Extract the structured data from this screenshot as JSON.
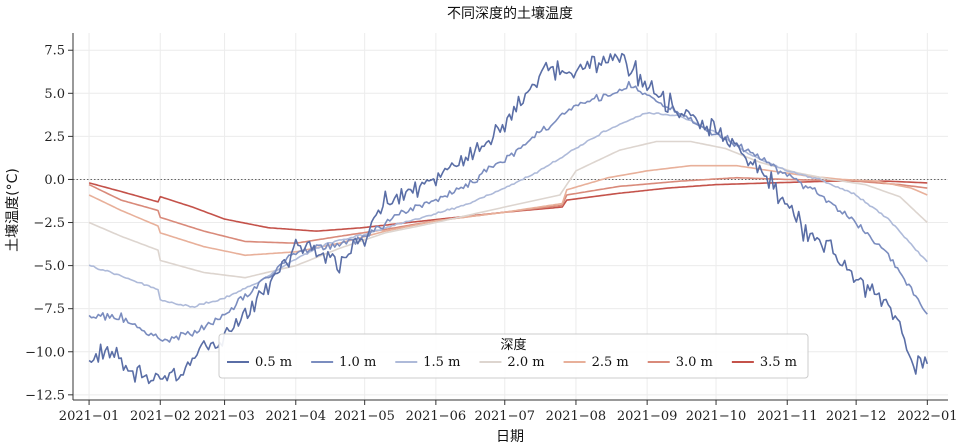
{
  "chart_data": {
    "type": "line",
    "title": "不同深度的土壤温度",
    "xlabel": "日期",
    "ylabel": "土壤温度(°C)",
    "xlim": [
      "2020-12-25",
      "2022-01-10"
    ],
    "ylim": [
      -12.8,
      8.5
    ],
    "x_ticks": [
      "2021-01-01",
      "2021-02-01",
      "2021-03-01",
      "2021-04-01",
      "2021-05-01",
      "2021-06-01",
      "2021-07-01",
      "2021-08-01",
      "2021-09-01",
      "2021-10-01",
      "2021-11-01",
      "2021-12-01",
      "2022-01-01"
    ],
    "x_tick_labels": [
      "2021−01",
      "2021−02",
      "2021−03",
      "2021−04",
      "2021−05",
      "2021−06",
      "2021−07",
      "2021−08",
      "2021−09",
      "2021−10",
      "2021−11",
      "2021−12",
      "2022−01"
    ],
    "y_ticks": [
      7.5,
      5.0,
      2.5,
      0.0,
      -2.5,
      -5.0,
      -7.5,
      -10.0,
      -12.5
    ],
    "y_tick_labels": [
      "7.5",
      "5.0",
      "2.5",
      "0.0",
      "−2.5",
      "−5.0",
      "−7.5",
      "−10.0",
      "−12.5"
    ],
    "grid": true,
    "reference_line": 0,
    "legend": {
      "title": "深度",
      "placement": "lower-center",
      "columns": 7
    },
    "series": [
      {
        "name": "0.5 m",
        "color": "#5a6ea6",
        "noise": 0.55,
        "points": [
          [
            "2021-01-01",
            -10.8
          ],
          [
            "2021-01-10",
            -9.8
          ],
          [
            "2021-01-20",
            -11.2
          ],
          [
            "2021-02-01",
            -11.6
          ],
          [
            "2021-02-10",
            -11.4
          ],
          [
            "2021-02-20",
            -9.6
          ],
          [
            "2021-03-01",
            -9.2
          ],
          [
            "2021-03-10",
            -7.8
          ],
          [
            "2021-03-20",
            -6.4
          ],
          [
            "2021-04-01",
            -3.8
          ],
          [
            "2021-04-10",
            -3.9
          ],
          [
            "2021-04-20",
            -4.8
          ],
          [
            "2021-05-01",
            -3.2
          ],
          [
            "2021-05-10",
            -1.2
          ],
          [
            "2021-05-20",
            -0.9
          ],
          [
            "2021-06-01",
            0.2
          ],
          [
            "2021-06-15",
            1.2
          ],
          [
            "2021-07-01",
            3.2
          ],
          [
            "2021-07-10",
            4.8
          ],
          [
            "2021-07-20",
            6.5
          ],
          [
            "2021-08-01",
            6.2
          ],
          [
            "2021-08-10",
            6.5
          ],
          [
            "2021-08-20",
            7.2
          ],
          [
            "2021-09-01",
            5.4
          ],
          [
            "2021-09-10",
            4.4
          ],
          [
            "2021-09-20",
            3.5
          ],
          [
            "2021-10-01",
            2.9
          ],
          [
            "2021-10-10",
            2.0
          ],
          [
            "2021-10-20",
            0.5
          ],
          [
            "2021-11-01",
            -1.5
          ],
          [
            "2021-11-10",
            -3.0
          ],
          [
            "2021-11-20",
            -4.0
          ],
          [
            "2021-12-01",
            -6.0
          ],
          [
            "2021-12-10",
            -6.8
          ],
          [
            "2021-12-20",
            -8.4
          ],
          [
            "2021-12-26",
            -11.0
          ],
          [
            "2022-01-01",
            -10.8
          ]
        ]
      },
      {
        "name": "1.0 m",
        "color": "#7b8dbf",
        "noise": 0.18,
        "points": [
          [
            "2021-01-01",
            -7.9
          ],
          [
            "2021-01-15",
            -8.0
          ],
          [
            "2021-02-01",
            -9.3
          ],
          [
            "2021-02-15",
            -9.0
          ],
          [
            "2021-03-01",
            -7.8
          ],
          [
            "2021-03-15",
            -6.2
          ],
          [
            "2021-04-01",
            -4.2
          ],
          [
            "2021-04-15",
            -3.9
          ],
          [
            "2021-05-01",
            -3.4
          ],
          [
            "2021-05-15",
            -2.0
          ],
          [
            "2021-06-01",
            -1.2
          ],
          [
            "2021-06-15",
            -0.3
          ],
          [
            "2021-07-01",
            1.2
          ],
          [
            "2021-07-15",
            2.6
          ],
          [
            "2021-08-01",
            4.3
          ],
          [
            "2021-08-15",
            4.9
          ],
          [
            "2021-08-25",
            5.5
          ],
          [
            "2021-09-10",
            4.2
          ],
          [
            "2021-10-01",
            2.6
          ],
          [
            "2021-10-15",
            1.7
          ],
          [
            "2021-11-01",
            0.2
          ],
          [
            "2021-11-15",
            -0.8
          ],
          [
            "2021-12-01",
            -2.6
          ],
          [
            "2021-12-15",
            -4.3
          ],
          [
            "2022-01-01",
            -7.8
          ]
        ]
      },
      {
        "name": "1.5 m",
        "color": "#aebad9",
        "noise": 0.05,
        "points": [
          [
            "2021-01-01",
            -5.0
          ],
          [
            "2021-01-15",
            -5.6
          ],
          [
            "2021-01-31",
            -6.4
          ],
          [
            "2021-02-01",
            -7.0
          ],
          [
            "2021-02-15",
            -7.4
          ],
          [
            "2021-03-01",
            -6.9
          ],
          [
            "2021-03-15",
            -6.0
          ],
          [
            "2021-04-01",
            -4.6
          ],
          [
            "2021-04-15",
            -3.7
          ],
          [
            "2021-05-01",
            -3.2
          ],
          [
            "2021-05-15",
            -2.6
          ],
          [
            "2021-06-01",
            -2.0
          ],
          [
            "2021-06-15",
            -1.4
          ],
          [
            "2021-07-01",
            -0.5
          ],
          [
            "2021-07-15",
            0.4
          ],
          [
            "2021-08-01",
            1.8
          ],
          [
            "2021-08-15",
            2.9
          ],
          [
            "2021-09-01",
            3.9
          ],
          [
            "2021-09-15",
            3.7
          ],
          [
            "2021-10-01",
            2.7
          ],
          [
            "2021-10-15",
            1.5
          ],
          [
            "2021-11-01",
            0.5
          ],
          [
            "2021-11-15",
            0.0
          ],
          [
            "2021-12-01",
            -0.9
          ],
          [
            "2021-12-15",
            -2.3
          ],
          [
            "2022-01-01",
            -4.8
          ]
        ]
      },
      {
        "name": "2.0 m",
        "color": "#ddd5cf",
        "noise": 0.0,
        "points": [
          [
            "2021-01-01",
            -2.5
          ],
          [
            "2021-01-15",
            -3.3
          ],
          [
            "2021-01-31",
            -4.1
          ],
          [
            "2021-02-01",
            -4.7
          ],
          [
            "2021-02-20",
            -5.4
          ],
          [
            "2021-03-10",
            -5.7
          ],
          [
            "2021-04-01",
            -5.0
          ],
          [
            "2021-04-20",
            -4.0
          ],
          [
            "2021-05-10",
            -3.1
          ],
          [
            "2021-06-01",
            -2.5
          ],
          [
            "2021-07-01",
            -1.6
          ],
          [
            "2021-07-25",
            -0.9
          ],
          [
            "2021-08-01",
            0.5
          ],
          [
            "2021-08-20",
            1.7
          ],
          [
            "2021-09-05",
            2.2
          ],
          [
            "2021-09-20",
            2.2
          ],
          [
            "2021-10-05",
            1.8
          ],
          [
            "2021-10-20",
            1.0
          ],
          [
            "2021-11-05",
            0.4
          ],
          [
            "2021-11-20",
            0.0
          ],
          [
            "2021-12-05",
            -0.3
          ],
          [
            "2021-12-20",
            -1.0
          ],
          [
            "2022-01-01",
            -2.5
          ]
        ]
      },
      {
        "name": "2.5 m",
        "color": "#e8b09a",
        "noise": 0.0,
        "points": [
          [
            "2021-01-01",
            -0.9
          ],
          [
            "2021-01-15",
            -1.8
          ],
          [
            "2021-01-31",
            -2.7
          ],
          [
            "2021-02-01",
            -3.1
          ],
          [
            "2021-02-20",
            -3.9
          ],
          [
            "2021-03-10",
            -4.4
          ],
          [
            "2021-04-01",
            -4.2
          ],
          [
            "2021-04-20",
            -3.7
          ],
          [
            "2021-05-10",
            -3.0
          ],
          [
            "2021-06-01",
            -2.4
          ],
          [
            "2021-07-01",
            -1.9
          ],
          [
            "2021-07-26",
            -1.4
          ],
          [
            "2021-07-28",
            -0.6
          ],
          [
            "2021-08-15",
            0.1
          ],
          [
            "2021-09-01",
            0.5
          ],
          [
            "2021-09-20",
            0.8
          ],
          [
            "2021-10-10",
            0.8
          ],
          [
            "2021-10-25",
            0.5
          ],
          [
            "2021-11-10",
            0.2
          ],
          [
            "2021-11-25",
            0.0
          ],
          [
            "2021-12-10",
            -0.1
          ],
          [
            "2021-12-25",
            -0.5
          ],
          [
            "2022-01-01",
            -0.9
          ]
        ]
      },
      {
        "name": "3.0 m",
        "color": "#d98a7a",
        "noise": 0.0,
        "points": [
          [
            "2021-01-01",
            -0.3
          ],
          [
            "2021-01-15",
            -1.2
          ],
          [
            "2021-01-31",
            -1.8
          ],
          [
            "2021-02-01",
            -2.2
          ],
          [
            "2021-02-20",
            -3.0
          ],
          [
            "2021-03-10",
            -3.6
          ],
          [
            "2021-04-01",
            -3.7
          ],
          [
            "2021-04-20",
            -3.3
          ],
          [
            "2021-05-10",
            -2.9
          ],
          [
            "2021-06-01",
            -2.4
          ],
          [
            "2021-07-01",
            -1.9
          ],
          [
            "2021-07-26",
            -1.5
          ],
          [
            "2021-07-28",
            -0.9
          ],
          [
            "2021-08-20",
            -0.4
          ],
          [
            "2021-09-15",
            -0.1
          ],
          [
            "2021-10-10",
            0.1
          ],
          [
            "2021-11-01",
            0.0
          ],
          [
            "2021-12-01",
            -0.1
          ],
          [
            "2021-12-20",
            -0.3
          ],
          [
            "2022-01-01",
            -0.5
          ]
        ]
      },
      {
        "name": "3.5 m",
        "color": "#c4524a",
        "noise": 0.0,
        "points": [
          [
            "2021-01-01",
            -0.2
          ],
          [
            "2021-01-15",
            -0.7
          ],
          [
            "2021-01-31",
            -1.3
          ],
          [
            "2021-02-01",
            -1.0
          ],
          [
            "2021-02-15",
            -1.6
          ],
          [
            "2021-03-01",
            -2.3
          ],
          [
            "2021-03-20",
            -2.8
          ],
          [
            "2021-04-10",
            -3.0
          ],
          [
            "2021-04-30",
            -2.8
          ],
          [
            "2021-05-20",
            -2.5
          ],
          [
            "2021-06-10",
            -2.2
          ],
          [
            "2021-07-01",
            -1.9
          ],
          [
            "2021-07-26",
            -1.6
          ],
          [
            "2021-07-28",
            -1.2
          ],
          [
            "2021-08-20",
            -0.8
          ],
          [
            "2021-09-10",
            -0.5
          ],
          [
            "2021-10-01",
            -0.3
          ],
          [
            "2021-10-25",
            -0.2
          ],
          [
            "2021-11-20",
            -0.1
          ],
          [
            "2021-12-15",
            -0.1
          ],
          [
            "2022-01-01",
            -0.2
          ]
        ]
      }
    ]
  }
}
